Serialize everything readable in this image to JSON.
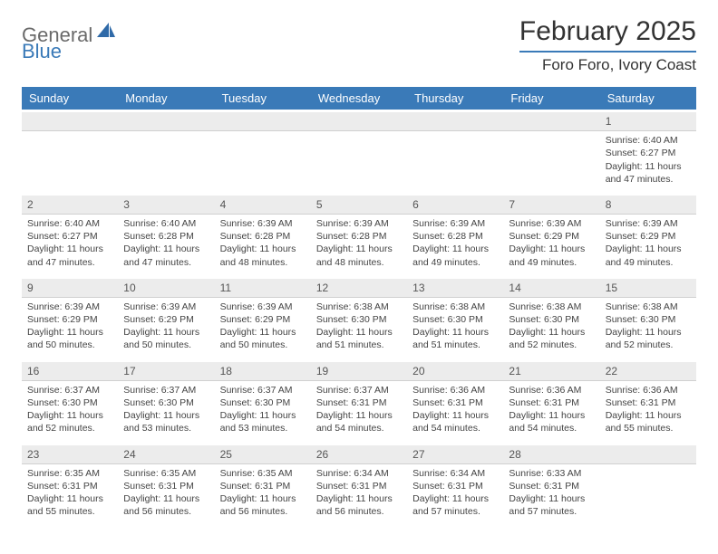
{
  "logo": {
    "text1": "General",
    "text2": "Blue"
  },
  "title": {
    "month_year": "February 2025",
    "location": "Foro Foro, Ivory Coast"
  },
  "colors": {
    "header_bar": "#3a7ab8",
    "daynum_bg": "#ececec",
    "text": "#333333",
    "logo_gray": "#6a6a6a",
    "logo_blue": "#3a7ab8"
  },
  "day_headers": [
    "Sunday",
    "Monday",
    "Tuesday",
    "Wednesday",
    "Thursday",
    "Friday",
    "Saturday"
  ],
  "weeks": [
    [
      {
        "n": "",
        "sr": "",
        "ss": "",
        "dl": ""
      },
      {
        "n": "",
        "sr": "",
        "ss": "",
        "dl": ""
      },
      {
        "n": "",
        "sr": "",
        "ss": "",
        "dl": ""
      },
      {
        "n": "",
        "sr": "",
        "ss": "",
        "dl": ""
      },
      {
        "n": "",
        "sr": "",
        "ss": "",
        "dl": ""
      },
      {
        "n": "",
        "sr": "",
        "ss": "",
        "dl": ""
      },
      {
        "n": "1",
        "sr": "Sunrise: 6:40 AM",
        "ss": "Sunset: 6:27 PM",
        "dl": "Daylight: 11 hours and 47 minutes."
      }
    ],
    [
      {
        "n": "2",
        "sr": "Sunrise: 6:40 AM",
        "ss": "Sunset: 6:27 PM",
        "dl": "Daylight: 11 hours and 47 minutes."
      },
      {
        "n": "3",
        "sr": "Sunrise: 6:40 AM",
        "ss": "Sunset: 6:28 PM",
        "dl": "Daylight: 11 hours and 47 minutes."
      },
      {
        "n": "4",
        "sr": "Sunrise: 6:39 AM",
        "ss": "Sunset: 6:28 PM",
        "dl": "Daylight: 11 hours and 48 minutes."
      },
      {
        "n": "5",
        "sr": "Sunrise: 6:39 AM",
        "ss": "Sunset: 6:28 PM",
        "dl": "Daylight: 11 hours and 48 minutes."
      },
      {
        "n": "6",
        "sr": "Sunrise: 6:39 AM",
        "ss": "Sunset: 6:28 PM",
        "dl": "Daylight: 11 hours and 49 minutes."
      },
      {
        "n": "7",
        "sr": "Sunrise: 6:39 AM",
        "ss": "Sunset: 6:29 PM",
        "dl": "Daylight: 11 hours and 49 minutes."
      },
      {
        "n": "8",
        "sr": "Sunrise: 6:39 AM",
        "ss": "Sunset: 6:29 PM",
        "dl": "Daylight: 11 hours and 49 minutes."
      }
    ],
    [
      {
        "n": "9",
        "sr": "Sunrise: 6:39 AM",
        "ss": "Sunset: 6:29 PM",
        "dl": "Daylight: 11 hours and 50 minutes."
      },
      {
        "n": "10",
        "sr": "Sunrise: 6:39 AM",
        "ss": "Sunset: 6:29 PM",
        "dl": "Daylight: 11 hours and 50 minutes."
      },
      {
        "n": "11",
        "sr": "Sunrise: 6:39 AM",
        "ss": "Sunset: 6:29 PM",
        "dl": "Daylight: 11 hours and 50 minutes."
      },
      {
        "n": "12",
        "sr": "Sunrise: 6:38 AM",
        "ss": "Sunset: 6:30 PM",
        "dl": "Daylight: 11 hours and 51 minutes."
      },
      {
        "n": "13",
        "sr": "Sunrise: 6:38 AM",
        "ss": "Sunset: 6:30 PM",
        "dl": "Daylight: 11 hours and 51 minutes."
      },
      {
        "n": "14",
        "sr": "Sunrise: 6:38 AM",
        "ss": "Sunset: 6:30 PM",
        "dl": "Daylight: 11 hours and 52 minutes."
      },
      {
        "n": "15",
        "sr": "Sunrise: 6:38 AM",
        "ss": "Sunset: 6:30 PM",
        "dl": "Daylight: 11 hours and 52 minutes."
      }
    ],
    [
      {
        "n": "16",
        "sr": "Sunrise: 6:37 AM",
        "ss": "Sunset: 6:30 PM",
        "dl": "Daylight: 11 hours and 52 minutes."
      },
      {
        "n": "17",
        "sr": "Sunrise: 6:37 AM",
        "ss": "Sunset: 6:30 PM",
        "dl": "Daylight: 11 hours and 53 minutes."
      },
      {
        "n": "18",
        "sr": "Sunrise: 6:37 AM",
        "ss": "Sunset: 6:30 PM",
        "dl": "Daylight: 11 hours and 53 minutes."
      },
      {
        "n": "19",
        "sr": "Sunrise: 6:37 AM",
        "ss": "Sunset: 6:31 PM",
        "dl": "Daylight: 11 hours and 54 minutes."
      },
      {
        "n": "20",
        "sr": "Sunrise: 6:36 AM",
        "ss": "Sunset: 6:31 PM",
        "dl": "Daylight: 11 hours and 54 minutes."
      },
      {
        "n": "21",
        "sr": "Sunrise: 6:36 AM",
        "ss": "Sunset: 6:31 PM",
        "dl": "Daylight: 11 hours and 54 minutes."
      },
      {
        "n": "22",
        "sr": "Sunrise: 6:36 AM",
        "ss": "Sunset: 6:31 PM",
        "dl": "Daylight: 11 hours and 55 minutes."
      }
    ],
    [
      {
        "n": "23",
        "sr": "Sunrise: 6:35 AM",
        "ss": "Sunset: 6:31 PM",
        "dl": "Daylight: 11 hours and 55 minutes."
      },
      {
        "n": "24",
        "sr": "Sunrise: 6:35 AM",
        "ss": "Sunset: 6:31 PM",
        "dl": "Daylight: 11 hours and 56 minutes."
      },
      {
        "n": "25",
        "sr": "Sunrise: 6:35 AM",
        "ss": "Sunset: 6:31 PM",
        "dl": "Daylight: 11 hours and 56 minutes."
      },
      {
        "n": "26",
        "sr": "Sunrise: 6:34 AM",
        "ss": "Sunset: 6:31 PM",
        "dl": "Daylight: 11 hours and 56 minutes."
      },
      {
        "n": "27",
        "sr": "Sunrise: 6:34 AM",
        "ss": "Sunset: 6:31 PM",
        "dl": "Daylight: 11 hours and 57 minutes."
      },
      {
        "n": "28",
        "sr": "Sunrise: 6:33 AM",
        "ss": "Sunset: 6:31 PM",
        "dl": "Daylight: 11 hours and 57 minutes."
      },
      {
        "n": "",
        "sr": "",
        "ss": "",
        "dl": ""
      }
    ]
  ]
}
